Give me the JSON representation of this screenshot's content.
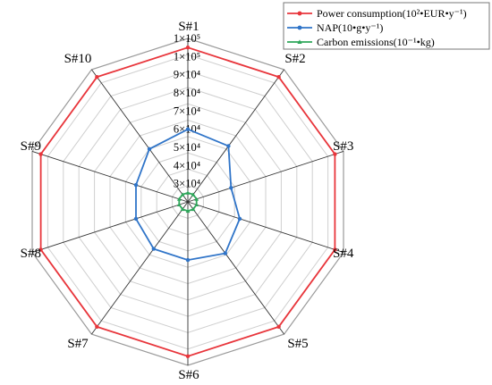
{
  "chart_data": {
    "type": "radar",
    "categories": [
      "S#1",
      "S#2",
      "S#3",
      "S#4",
      "S#5",
      "S#6",
      "S#7",
      "S#8",
      "S#9",
      "S#10"
    ],
    "radial_ticks": [
      "1×10⁵",
      "1×10⁵",
      "9×10⁴",
      "8×10⁴",
      "7×10⁴",
      "6×10⁴",
      "5×10⁴",
      "4×10⁴",
      "3×10⁴"
    ],
    "radial_tick_values": [
      110000,
      100000,
      90000,
      80000,
      70000,
      60000,
      50000,
      40000,
      30000
    ],
    "rlim": [
      20000,
      110000
    ],
    "grid": true,
    "legend_position": "top-right",
    "series": [
      {
        "name": "Power consumption(10²•EUR•y⁻¹)",
        "color": "#e8353b",
        "marker": "circle",
        "values": [
          105000,
          105000,
          105000,
          105000,
          105000,
          105000,
          105000,
          105000,
          105000,
          105000
        ]
      },
      {
        "name": "NAP(10•g•y⁻¹)",
        "color": "#2f74c8",
        "marker": "circle",
        "values": [
          60000,
          58000,
          45000,
          50000,
          55000,
          52000,
          52000,
          50000,
          50000,
          56000
        ]
      },
      {
        "name": "Carbon emissions(10⁻¹•kg)",
        "color": "#2ea65a",
        "marker": "triangle",
        "values": [
          25000,
          25000,
          25000,
          25000,
          25000,
          25000,
          25000,
          25000,
          25000,
          25000
        ]
      }
    ]
  }
}
